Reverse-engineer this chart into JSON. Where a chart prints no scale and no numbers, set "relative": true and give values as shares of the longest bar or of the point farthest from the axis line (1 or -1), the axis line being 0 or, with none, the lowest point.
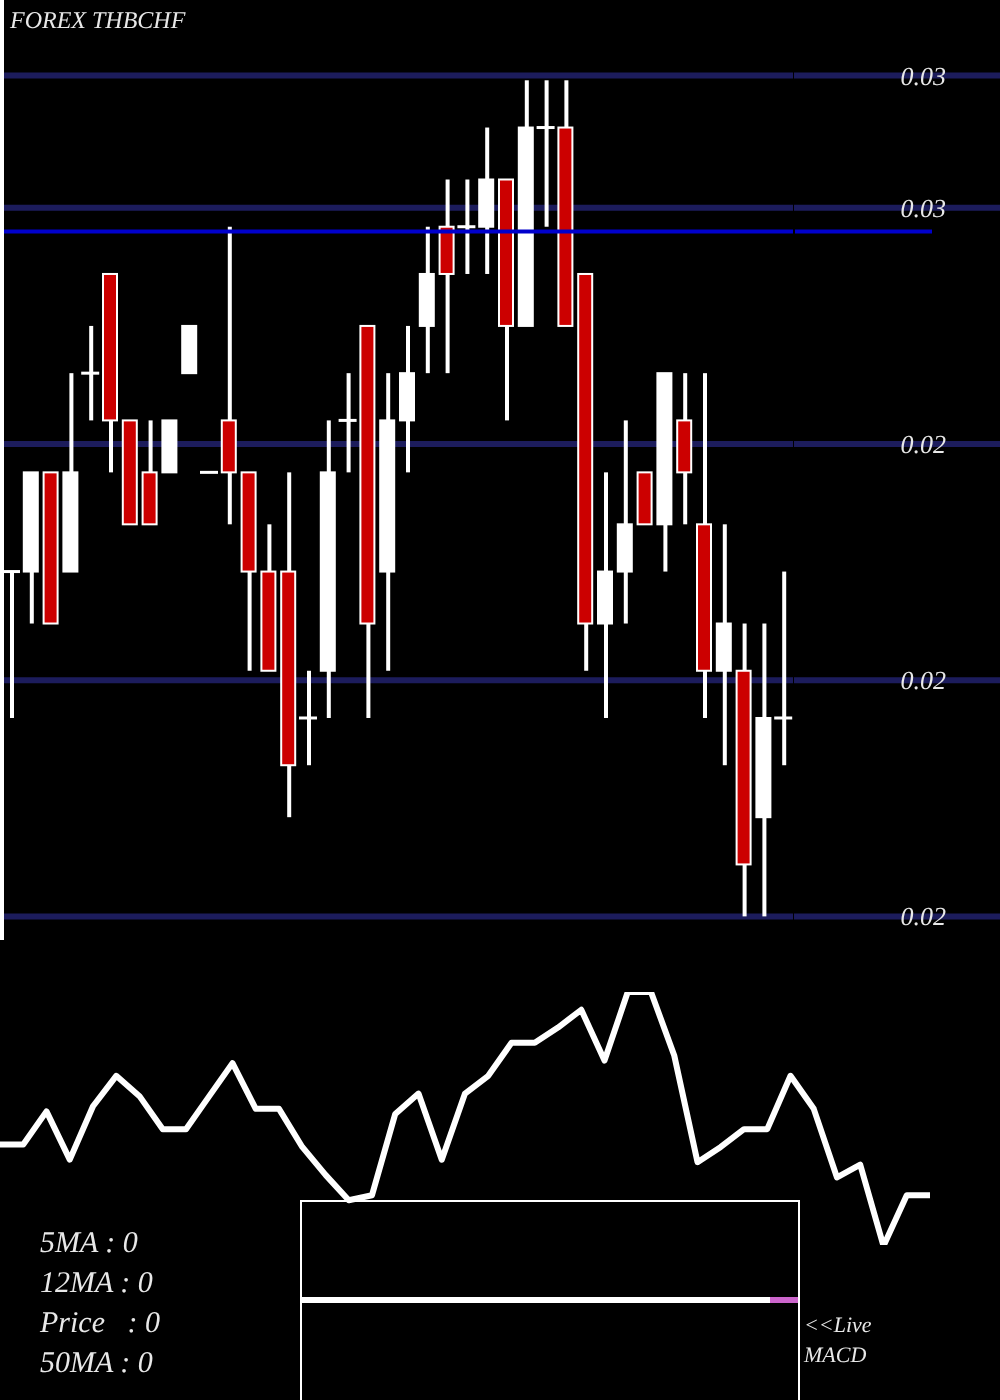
{
  "chart_data": [
    {
      "type": "candlestick",
      "title": "FOREX THBCHF",
      "categories": [
        null,
        null,
        null,
        null,
        null,
        null,
        null,
        null,
        null,
        null,
        null,
        null,
        null,
        null,
        null,
        null,
        null,
        null,
        null,
        null,
        null,
        null,
        null,
        null,
        null,
        null,
        null,
        null,
        null,
        null,
        null,
        null,
        null,
        null,
        null,
        null,
        null,
        null,
        null,
        null
      ],
      "ohlc": [
        [
          0.02453,
          0.02453,
          0.02422,
          0.02453
        ],
        [
          0.02453,
          0.02474,
          0.02442,
          0.02474
        ],
        [
          0.02474,
          0.02474,
          0.02442,
          0.02442
        ],
        [
          0.02453,
          0.02495,
          0.02453,
          0.02474
        ],
        [
          0.02495,
          0.02505,
          0.02485,
          0.02495
        ],
        [
          0.02516,
          0.02516,
          0.02474,
          0.02485
        ],
        [
          0.02485,
          0.02485,
          0.02463,
          0.02463
        ],
        [
          0.02474,
          0.02485,
          0.02463,
          0.02463
        ],
        [
          0.02474,
          0.02485,
          0.02474,
          0.02485
        ],
        [
          0.02495,
          0.02505,
          0.02495,
          0.02505
        ],
        [
          0.02474,
          0.02474,
          0.02474,
          0.02474
        ],
        [
          0.02485,
          0.02526,
          0.02463,
          0.02474
        ],
        [
          0.02474,
          0.02474,
          0.02432,
          0.02453
        ],
        [
          0.02453,
          0.02463,
          0.02432,
          0.02432
        ],
        [
          0.02453,
          0.02474,
          0.02401,
          0.02412
        ],
        [
          0.02422,
          0.02432,
          0.02412,
          0.02422
        ],
        [
          0.02432,
          0.02485,
          0.02422,
          0.02474
        ],
        [
          0.02485,
          0.02495,
          0.02474,
          0.02485
        ],
        [
          0.02505,
          0.02505,
          0.02422,
          0.02442
        ],
        [
          0.02453,
          0.02495,
          0.02432,
          0.02485
        ],
        [
          0.02485,
          0.02505,
          0.02474,
          0.02495
        ],
        [
          0.02505,
          0.02526,
          0.02495,
          0.02516
        ],
        [
          0.02526,
          0.02536,
          0.02495,
          0.02516
        ],
        [
          0.02526,
          0.02536,
          0.02516,
          0.02526
        ],
        [
          0.02526,
          0.02547,
          0.02516,
          0.02536
        ],
        [
          0.02536,
          0.02536,
          0.02485,
          0.02505
        ],
        [
          0.02505,
          0.02557,
          0.02505,
          0.02547
        ],
        [
          0.02547,
          0.02557,
          0.02526,
          0.02547
        ],
        [
          0.02547,
          0.02557,
          0.02505,
          0.02505
        ],
        [
          0.02516,
          0.02516,
          0.02432,
          0.02442
        ],
        [
          0.02442,
          0.02474,
          0.02422,
          0.02453
        ],
        [
          0.02453,
          0.02485,
          0.02442,
          0.02463
        ],
        [
          0.02474,
          0.02474,
          0.02463,
          0.02463
        ],
        [
          0.02463,
          0.02495,
          0.02453,
          0.02495
        ],
        [
          0.02485,
          0.02495,
          0.02463,
          0.02474
        ],
        [
          0.02463,
          0.02495,
          0.02422,
          0.02432
        ],
        [
          0.02432,
          0.02463,
          0.02412,
          0.02442
        ],
        [
          0.02432,
          0.02442,
          0.0238,
          0.02391
        ],
        [
          0.02401,
          0.02442,
          0.0238,
          0.02422
        ],
        [
          0.02422,
          0.02453,
          0.02412,
          0.02422
        ]
      ],
      "colors": [
        "#ffffff",
        "#ffffff",
        "#cc0000",
        "#ffffff",
        "#ffffff",
        "#cc0000",
        "#cc0000",
        "#cc0000",
        "#ffffff",
        "#ffffff",
        "#ffffff",
        "#cc0000",
        "#cc0000",
        "#cc0000",
        "#cc0000",
        "#ffffff",
        "#ffffff",
        "#ffffff",
        "#cc0000",
        "#ffffff",
        "#ffffff",
        "#ffffff",
        "#cc0000",
        "#ffffff",
        "#ffffff",
        "#cc0000",
        "#ffffff",
        "#ffffff",
        "#cc0000",
        "#cc0000",
        "#ffffff",
        "#ffffff",
        "#cc0000",
        "#ffffff",
        "#cc0000",
        "#cc0000",
        "#ffffff",
        "#cc0000",
        "#ffffff",
        "#ffffff"
      ],
      "ylim": [
        0.02375,
        0.02574
      ],
      "yticks": [
        {
          "value": 0.0238,
          "label": "0.02"
        },
        {
          "value": 0.0243,
          "label": "0.02"
        },
        {
          "value": 0.0248,
          "label": "0.02"
        },
        {
          "value": 0.0253,
          "label": "0.03"
        },
        {
          "value": 0.02558,
          "label": "0.03"
        }
      ],
      "grid": "y",
      "ref_lines": [
        {
          "axis": "y",
          "value": 0.02525,
          "color": "#0000cc"
        }
      ],
      "tick_labels": "y"
    },
    {
      "type": "line",
      "categories": [
        null,
        null,
        null,
        null,
        null,
        null,
        null,
        null,
        null,
        null,
        null,
        null,
        null,
        null,
        null,
        null,
        null,
        null,
        null,
        null,
        null,
        null,
        null,
        null,
        null,
        null,
        null,
        null,
        null,
        null,
        null,
        null,
        null,
        null,
        null,
        null,
        null,
        null,
        null,
        null,
        null
      ],
      "values": [
        0.4,
        0.4,
        0.53,
        0.34,
        0.55,
        0.67,
        0.59,
        0.46,
        0.46,
        0.59,
        0.72,
        0.54,
        0.54,
        0.39,
        0.28,
        0.18,
        0.2,
        0.52,
        0.6,
        0.34,
        0.6,
        0.67,
        0.8,
        0.8,
        0.86,
        0.93,
        0.73,
        1,
        1,
        0.75,
        0.33,
        0.39,
        0.46,
        0.46,
        0.67,
        0.54,
        0.27,
        0.32,
        0,
        0.2,
        0.2
      ],
      "color": "#ffffff",
      "relative": true,
      "tick_labels": false,
      "annotations": [
        "5MA : 0",
        "12MA : 0",
        "Price   : 0",
        "50MA : 0",
        "<<Live MACD"
      ]
    }
  ]
}
